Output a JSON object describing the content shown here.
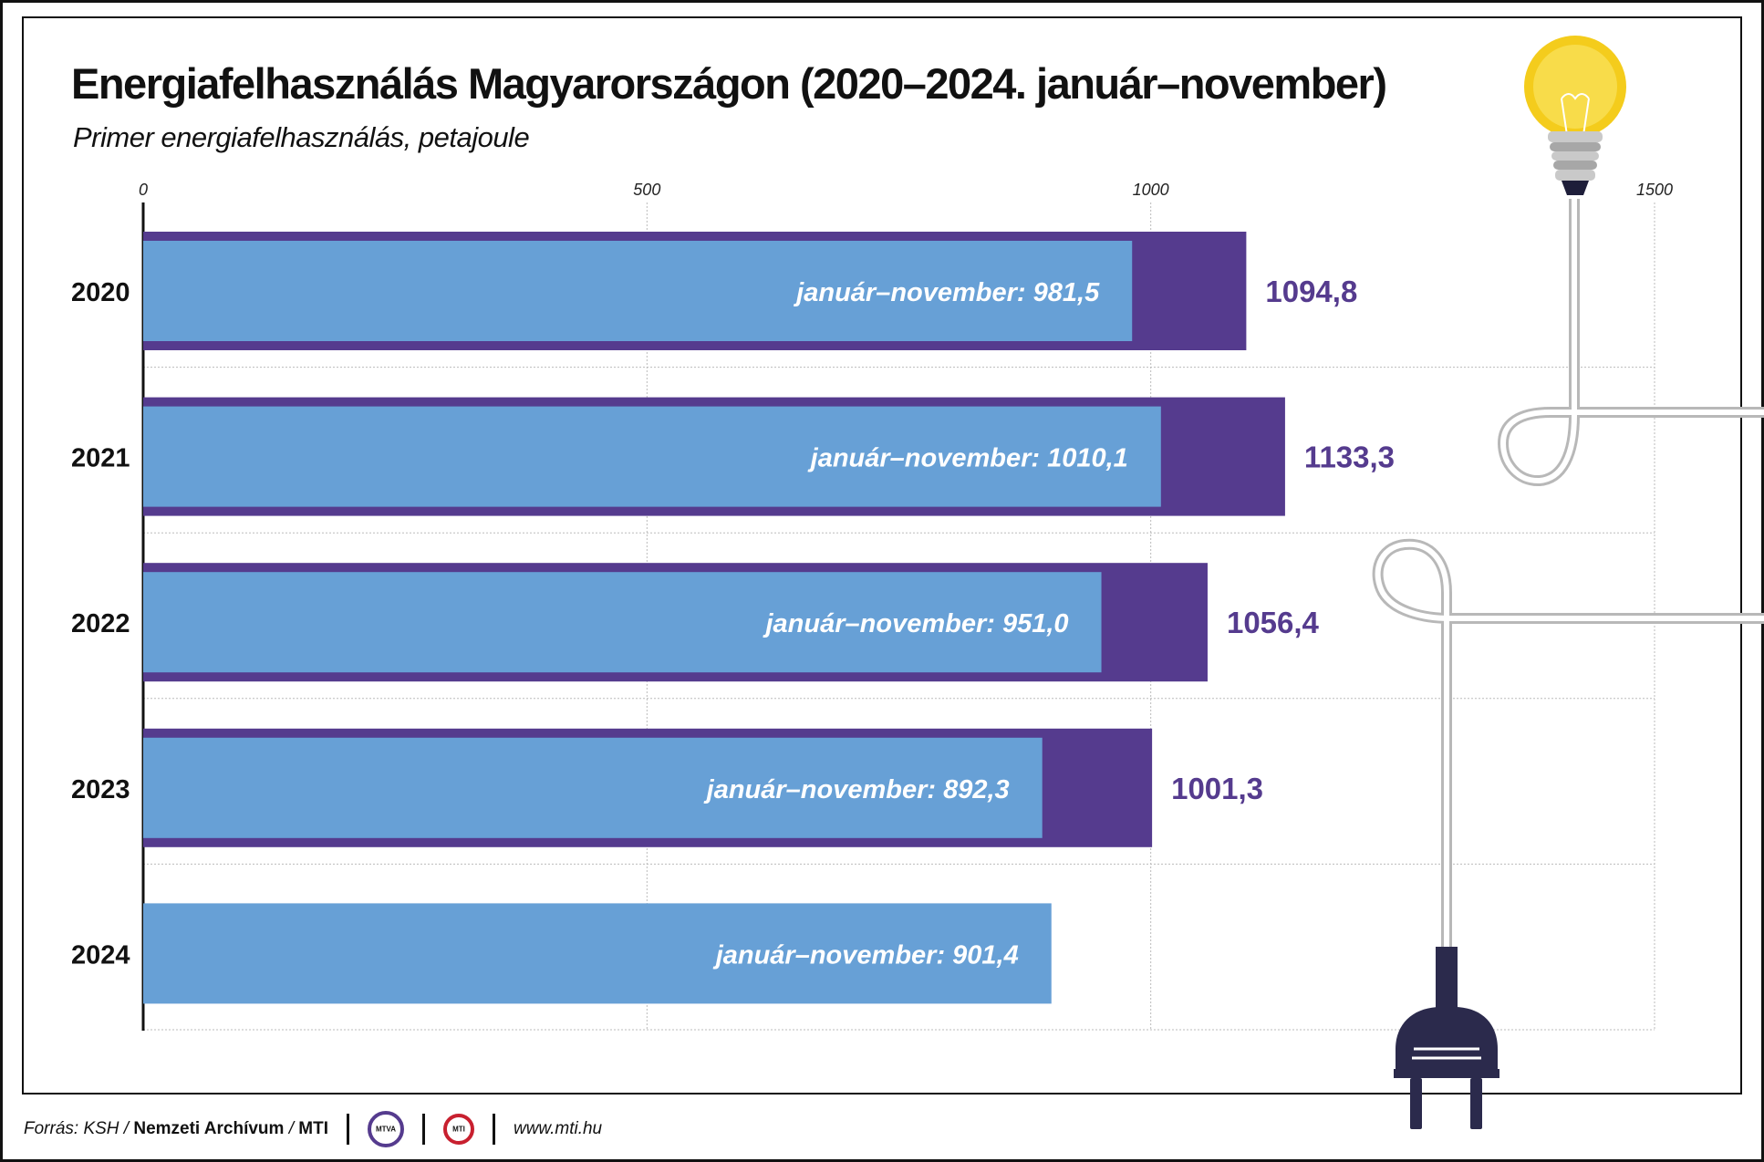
{
  "title": "Energiafelhasználás Magyarországon (2020–2024. január–november)",
  "subtitle": "Primer energiafelhasználás, petajoule",
  "footer": {
    "source_prefix": "Forrás: KSH /",
    "source_bold": "Nemzeti Archívum",
    "source_sep": "/",
    "source_org": "MTI",
    "logo1": "MTVA",
    "logo2": "MTI",
    "website": "www.mti.hu"
  },
  "colors": {
    "annual": "#553b8e",
    "jan_nov": "#67a0d6",
    "grid": "#bbbbbb"
  },
  "icons": [
    "light-bulb-icon",
    "cable-icon",
    "plug-icon"
  ],
  "chart_data": {
    "type": "bar",
    "orientation": "horizontal",
    "categories": [
      "2020",
      "2021",
      "2022",
      "2023",
      "2024"
    ],
    "series": [
      {
        "values": [
          1094.8,
          1133.3,
          1056.4,
          1001.3,
          null
        ],
        "labels": [
          "1094,8",
          "1133,3",
          "1056,4",
          "1001,3",
          ""
        ]
      },
      {
        "values": [
          981.5,
          1010.1,
          951.0,
          892.3,
          901.4
        ],
        "labels": [
          "január–november: 981,5",
          "január–november: 1010,1",
          "január–november: 951,0",
          "január–november: 892,3",
          "január–november: 901,4"
        ]
      }
    ],
    "xticks": [
      "0",
      "500",
      "1000",
      "1500"
    ],
    "xlim": [
      0,
      1500
    ],
    "grid": true,
    "xlabel": "",
    "ylabel": ""
  }
}
